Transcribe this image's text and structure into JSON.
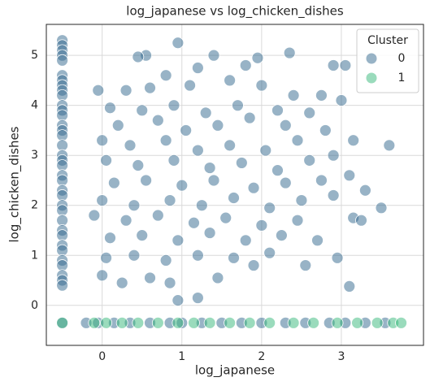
{
  "chart_data": {
    "type": "scatter",
    "title": "log_japanese vs log_chicken_dishes",
    "x_label": "log_japanese",
    "y_label": "log_chicken_dishes",
    "xlim": [
      -0.7,
      4.03
    ],
    "ylim": [
      -0.8,
      5.62
    ],
    "xticks": [
      0,
      1,
      2,
      3
    ],
    "yticks": [
      0,
      1,
      2,
      3,
      4,
      5
    ],
    "grid": true,
    "legend_title": "Cluster",
    "legend_position": "upper right",
    "series": [
      {
        "name": "0",
        "color": "#31688e",
        "x": [
          -0.5,
          -0.5,
          -0.5,
          -0.5,
          -0.5,
          -0.5,
          -0.5,
          -0.5,
          -0.5,
          -0.5,
          -0.5,
          -0.5,
          -0.5,
          -0.5,
          -0.5,
          -0.5,
          -0.5,
          -0.5,
          -0.5,
          -0.5,
          -0.5,
          -0.5,
          -0.5,
          -0.5,
          -0.5,
          -0.5,
          -0.5,
          -0.5,
          -0.5,
          -0.5,
          -0.5,
          -0.5,
          -0.5,
          -0.5,
          -0.5,
          -0.5,
          0.95,
          0.55,
          0.45,
          1.4,
          1.8,
          2.9,
          3.05,
          2.35,
          1.95,
          0.8,
          1.2,
          -0.05,
          0.3,
          0.6,
          1.1,
          1.6,
          2.0,
          2.4,
          2.75,
          3.0,
          0.1,
          0.5,
          0.9,
          1.3,
          1.7,
          2.2,
          2.6,
          0.2,
          0.7,
          1.05,
          1.45,
          1.85,
          2.3,
          2.8,
          3.15,
          3.6,
          0.0,
          0.35,
          0.8,
          1.2,
          1.6,
          2.05,
          2.45,
          2.9,
          0.05,
          0.45,
          0.9,
          1.35,
          1.75,
          2.2,
          2.6,
          3.1,
          0.15,
          0.55,
          1.0,
          1.4,
          1.9,
          2.3,
          2.75,
          3.3,
          0.0,
          0.4,
          0.85,
          1.25,
          1.65,
          2.1,
          2.5,
          2.9,
          3.5,
          -0.1,
          0.3,
          0.7,
          1.15,
          1.55,
          2.0,
          2.45,
          3.15,
          0.1,
          0.5,
          0.95,
          1.35,
          1.8,
          2.25,
          2.7,
          0.05,
          0.4,
          0.8,
          1.2,
          1.65,
          2.1,
          2.95,
          0.25,
          0.6,
          0.85,
          1.45,
          1.9,
          3.1,
          0.95,
          1.2,
          0.0,
          2.55,
          3.25,
          -0.5,
          -0.2,
          -0.05,
          0.15,
          0.35,
          0.6,
          0.85,
          1.0,
          1.25,
          1.5,
          1.75,
          2.0,
          2.3,
          2.55,
          2.85,
          3.05,
          3.3,
          3.55
        ],
        "values": [
          5.3,
          5.2,
          5.1,
          5.0,
          4.9,
          4.6,
          4.5,
          4.4,
          4.3,
          4.2,
          4.0,
          3.9,
          3.8,
          3.6,
          3.5,
          3.4,
          3.2,
          3.0,
          2.9,
          2.8,
          2.6,
          2.5,
          2.3,
          2.2,
          2.0,
          1.9,
          1.7,
          1.5,
          1.4,
          1.2,
          1.1,
          0.9,
          0.8,
          0.6,
          0.5,
          0.4,
          5.25,
          5.0,
          4.97,
          5.0,
          4.8,
          4.8,
          4.8,
          5.05,
          4.95,
          4.6,
          4.75,
          4.3,
          4.3,
          4.35,
          4.4,
          4.5,
          4.4,
          4.2,
          4.2,
          4.1,
          3.95,
          3.9,
          4.0,
          3.85,
          4.0,
          3.9,
          3.85,
          3.6,
          3.7,
          3.5,
          3.6,
          3.75,
          3.6,
          3.5,
          3.3,
          3.2,
          3.3,
          3.2,
          3.3,
          3.1,
          3.2,
          3.1,
          3.3,
          3.0,
          2.9,
          2.8,
          2.9,
          2.75,
          2.85,
          2.7,
          2.9,
          2.6,
          2.45,
          2.5,
          2.4,
          2.5,
          2.35,
          2.45,
          2.5,
          2.3,
          2.1,
          2.0,
          2.1,
          2.0,
          2.15,
          1.95,
          2.1,
          2.2,
          1.95,
          1.8,
          1.7,
          1.8,
          1.65,
          1.75,
          1.6,
          1.7,
          1.75,
          1.35,
          1.4,
          1.3,
          1.45,
          1.3,
          1.4,
          1.3,
          0.95,
          1.0,
          0.9,
          1.0,
          0.95,
          1.05,
          0.95,
          0.45,
          0.55,
          0.45,
          0.55,
          0.8,
          0.38,
          0.1,
          0.15,
          0.6,
          0.8,
          1.7,
          -0.35,
          -0.35,
          -0.35,
          -0.35,
          -0.35,
          -0.35,
          -0.35,
          -0.35,
          -0.35,
          -0.35,
          -0.35,
          -0.35,
          -0.35,
          -0.35,
          -0.35,
          -0.35,
          -0.35,
          -0.35
        ]
      },
      {
        "name": "1",
        "color": "#35b779",
        "x": [
          -0.5,
          -0.1,
          0.05,
          0.25,
          0.45,
          0.7,
          0.95,
          1.15,
          1.35,
          1.6,
          1.85,
          2.1,
          2.4,
          2.65,
          2.95,
          3.2,
          3.45,
          3.65,
          3.75
        ],
        "values": [
          -0.35,
          -0.35,
          -0.35,
          -0.35,
          -0.35,
          -0.35,
          -0.35,
          -0.35,
          -0.35,
          -0.35,
          -0.35,
          -0.35,
          -0.35,
          -0.35,
          -0.35,
          -0.35,
          -0.35,
          -0.35,
          -0.35
        ]
      }
    ]
  }
}
